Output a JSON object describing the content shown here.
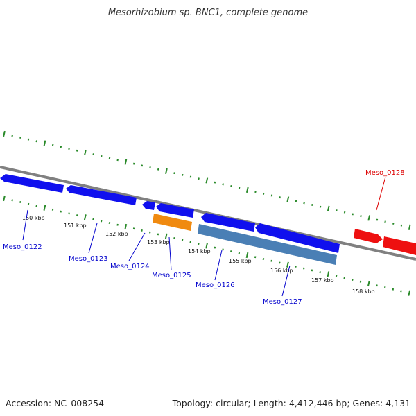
{
  "title": "Mesorhizobium sp. BNC1, complete genome",
  "footer": {
    "accession": "Accession: NC_008254",
    "topology": "Topology: circular; Length: 4,412,446 bp; Genes: 4,131"
  },
  "colors": {
    "forward_gene": "#1010ee",
    "reverse_gene_a": "#4a7fb5",
    "reverse_gene_b": "#f08a10",
    "highlight_gene": "#ee1010",
    "backbone": "#808080",
    "ticks": "#2a8a2a",
    "label_blue": "#0000cc",
    "label_red": "#dd0000"
  },
  "kbp_labels": [
    "150 kbp",
    "151 kbp",
    "152 kbp",
    "153 kbp",
    "154 kbp",
    "155 kbp",
    "156 kbp",
    "157 kbp",
    "158 kbp"
  ],
  "gene_labels": [
    {
      "name": "Meso_0122",
      "color": "label_blue"
    },
    {
      "name": "Meso_0123",
      "color": "label_blue"
    },
    {
      "name": "Meso_0124",
      "color": "label_blue"
    },
    {
      "name": "Meso_0125",
      "color": "label_blue"
    },
    {
      "name": "Meso_0126",
      "color": "label_blue"
    },
    {
      "name": "Meso_0127",
      "color": "label_blue"
    },
    {
      "name": "Meso_0128",
      "color": "label_red"
    }
  ]
}
